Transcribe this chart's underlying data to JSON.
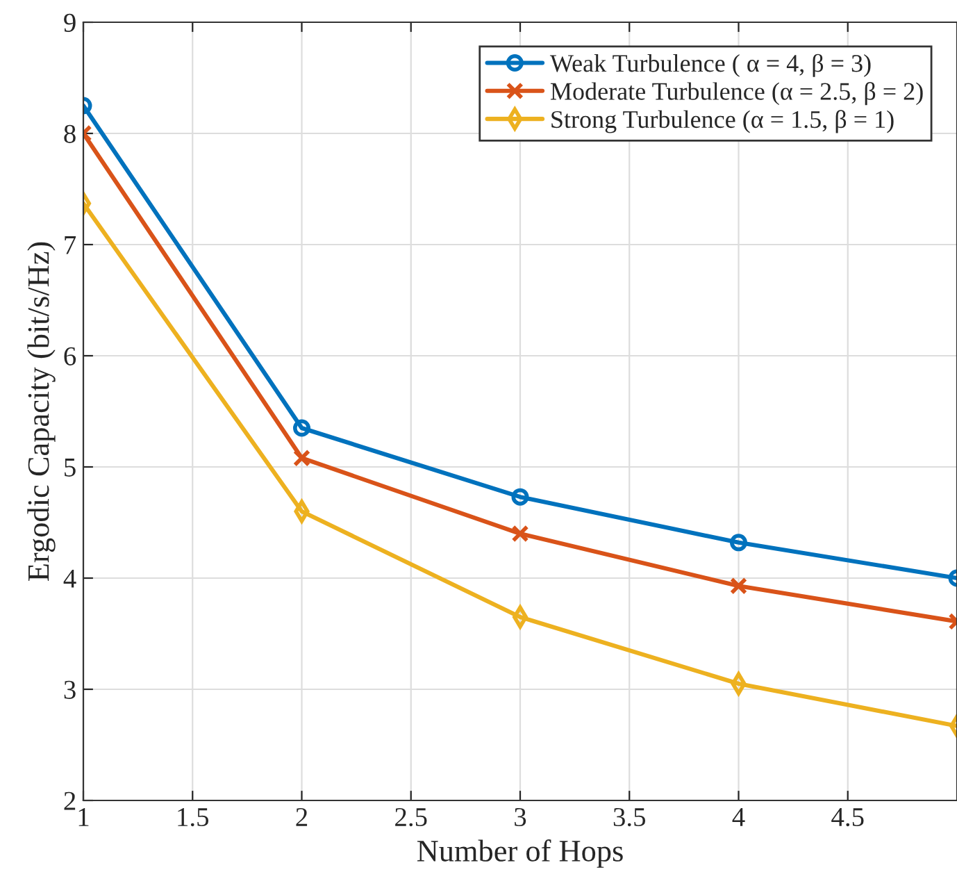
{
  "chart_data": {
    "type": "line",
    "xlabel": "Number of Hops",
    "ylabel": "Ergodic Capacity (bit/s/Hz)",
    "x": [
      1,
      2,
      3,
      4,
      5
    ],
    "series": [
      {
        "name": "Weak Turbulence ( α = 4, β = 3)",
        "color": "#0072bd",
        "values": [
          8.25,
          5.35,
          4.73,
          4.32,
          4.0
        ],
        "marker": "circle"
      },
      {
        "name": "Moderate Turbulence (α = 2.5, β = 2)",
        "color": "#d95319",
        "values": [
          8.0,
          5.08,
          4.4,
          3.93,
          3.61
        ],
        "marker": "cross"
      },
      {
        "name": "Strong Turbulence (α = 1.5, β = 1)",
        "color": "#edb120",
        "values": [
          7.37,
          4.6,
          3.65,
          3.05,
          2.67
        ],
        "marker": "diamond"
      }
    ],
    "xlim": [
      1,
      5
    ],
    "xticks": [
      1,
      1.5,
      2,
      2.5,
      3,
      3.5,
      4,
      4.5
    ],
    "ylim": [
      2,
      9
    ],
    "yticks": [
      2,
      3,
      4,
      5,
      6,
      7,
      8,
      9
    ],
    "grid": true,
    "legend": "top right",
    "line_style": "solid"
  }
}
